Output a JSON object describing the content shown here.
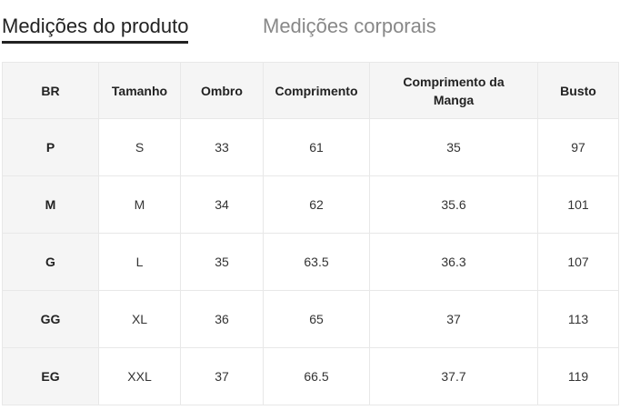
{
  "tabs": [
    {
      "label": "Medições do produto",
      "active": true
    },
    {
      "label": "Medições corporais",
      "active": false
    }
  ],
  "table": {
    "headers": [
      "BR",
      "Tamanho",
      "Ombro",
      "Comprimento",
      "Comprimento da Manga",
      "Busto"
    ],
    "rows": [
      [
        "P",
        "S",
        "33",
        "61",
        "35",
        "97"
      ],
      [
        "M",
        "M",
        "34",
        "62",
        "35.6",
        "101"
      ],
      [
        "G",
        "L",
        "35",
        "63.5",
        "36.3",
        "107"
      ],
      [
        "GG",
        "XL",
        "36",
        "65",
        "37",
        "113"
      ],
      [
        "EG",
        "XXL",
        "37",
        "66.5",
        "37.7",
        "119"
      ]
    ]
  }
}
